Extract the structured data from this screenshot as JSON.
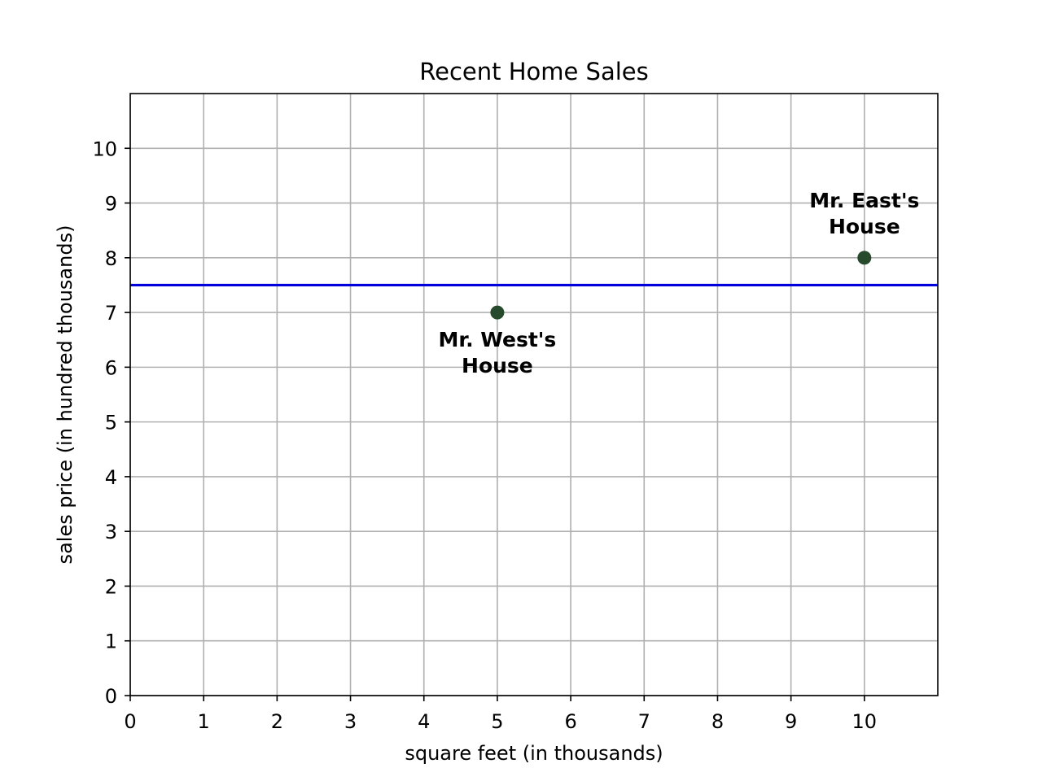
{
  "chart_data": {
    "type": "scatter",
    "title": "Recent Home Sales",
    "xlabel": "square feet (in thousands)",
    "ylabel": "sales price (in hundred thousands)",
    "xlim": [
      0,
      11
    ],
    "ylim": [
      0,
      11
    ],
    "xticks": [
      0,
      1,
      2,
      3,
      4,
      5,
      6,
      7,
      8,
      9,
      10
    ],
    "yticks": [
      0,
      1,
      2,
      3,
      4,
      5,
      6,
      7,
      8,
      9,
      10
    ],
    "grid": true,
    "points": [
      {
        "x": 5,
        "y": 7,
        "label": [
          "Mr. West's",
          "House"
        ],
        "label_position": "below"
      },
      {
        "x": 10,
        "y": 8,
        "label": [
          "Mr. East's",
          "House"
        ],
        "label_position": "above"
      }
    ],
    "horizontal_line": {
      "y": 7.5
    },
    "colors": {
      "points": "#264a2b",
      "line": "#0000dd",
      "grid": "#b0b0b0",
      "axes": "#000000"
    }
  }
}
